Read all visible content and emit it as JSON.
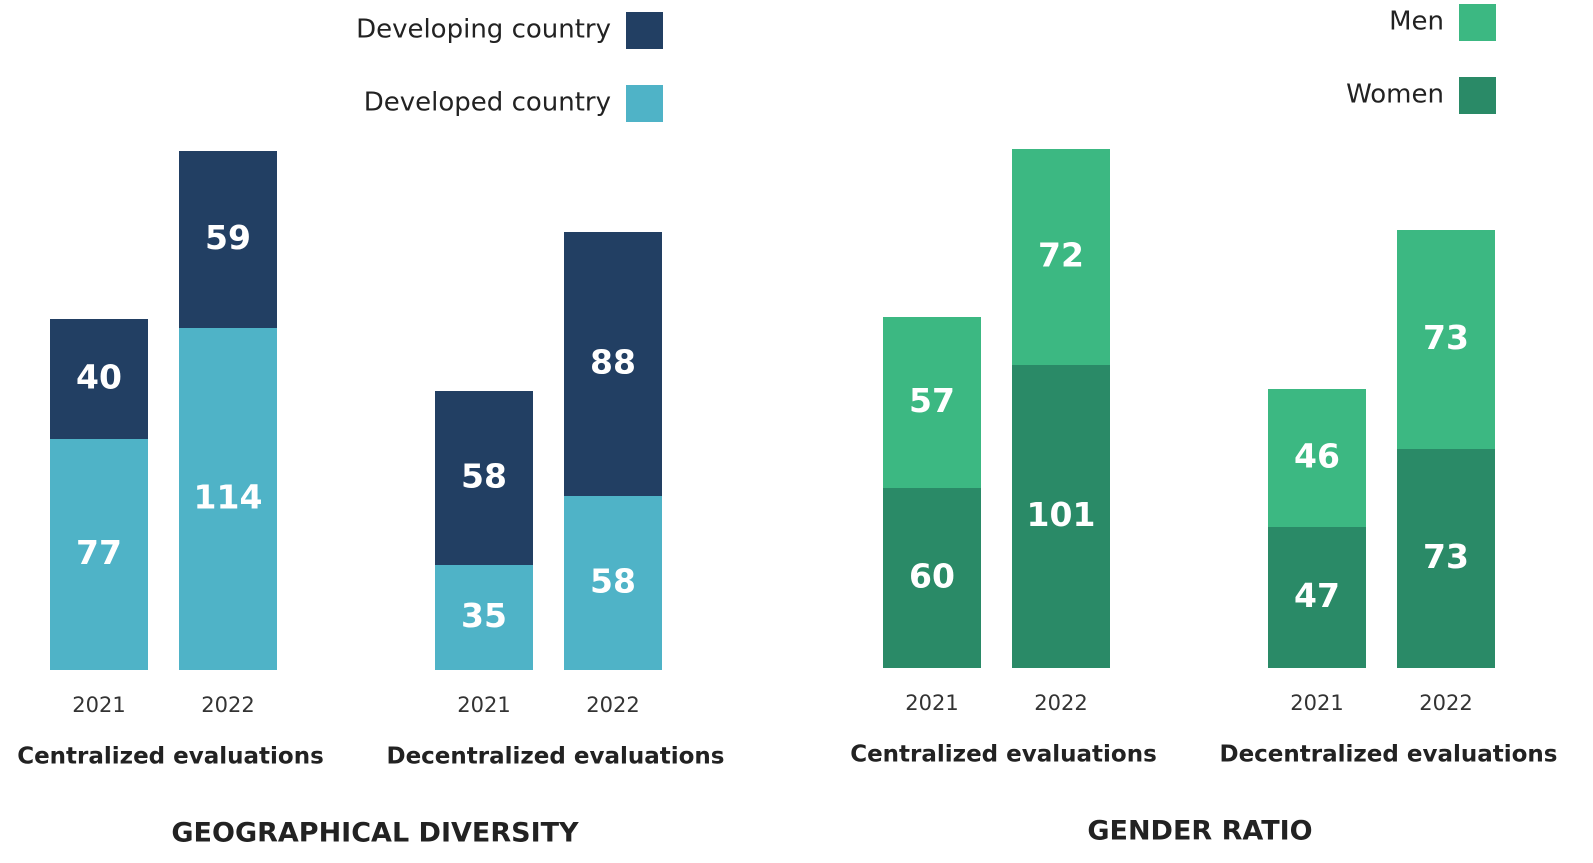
{
  "chart_data": [
    {
      "type": "bar",
      "stacked": true,
      "title": "GEOGRAPHICAL DIVERSITY",
      "groups": [
        "Centralized evaluations",
        "Decentralized evaluations"
      ],
      "categories": [
        "2021",
        "2022",
        "2021",
        "2022"
      ],
      "series": [
        {
          "name": "Developed country",
          "color": "#4fb3c7",
          "values": [
            77,
            114,
            35,
            58
          ]
        },
        {
          "name": "Developing country",
          "color": "#223f63",
          "values": [
            40,
            59,
            58,
            88
          ]
        }
      ]
    },
    {
      "type": "bar",
      "stacked": true,
      "title": "GENDER RATIO",
      "groups": [
        "Centralized evaluations",
        "Decentralized evaluations"
      ],
      "categories": [
        "2021",
        "2022",
        "2021",
        "2022"
      ],
      "series": [
        {
          "name": "Women",
          "color": "#2a8a67",
          "values": [
            60,
            101,
            47,
            73
          ]
        },
        {
          "name": "Men",
          "color": "#3cb882",
          "values": [
            57,
            72,
            46,
            73
          ]
        }
      ]
    }
  ]
}
